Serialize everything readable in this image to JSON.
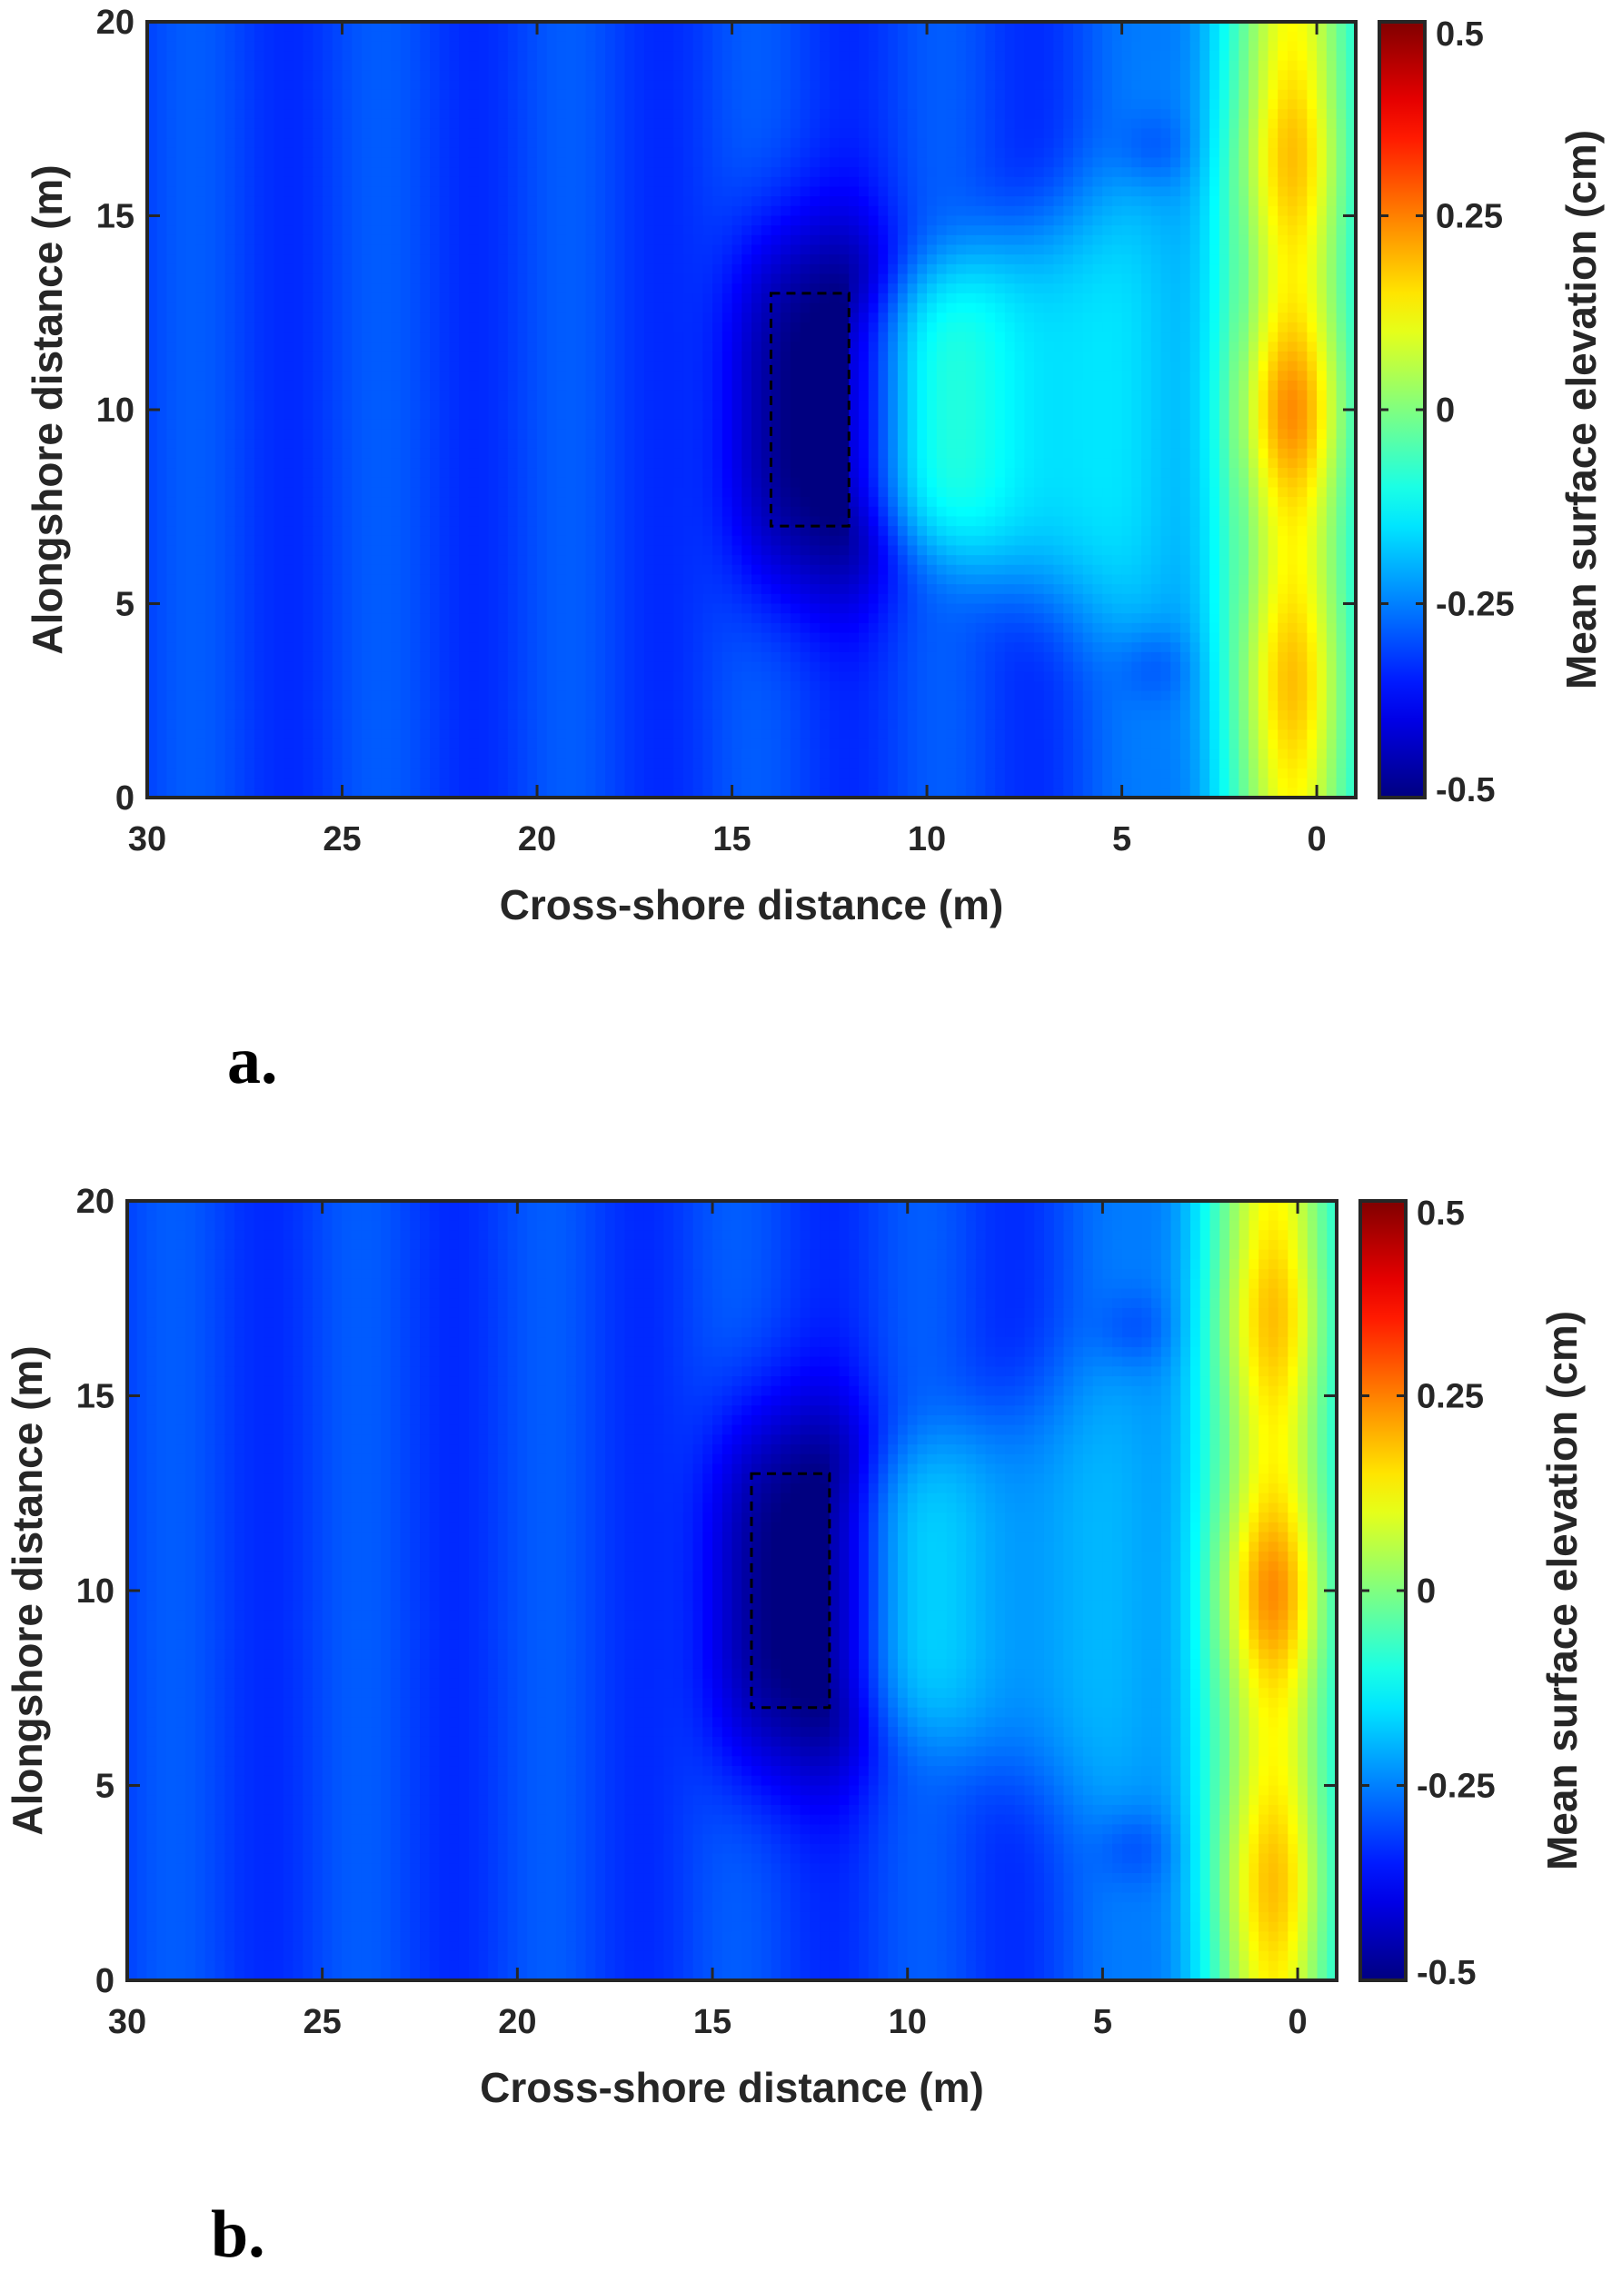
{
  "chart_data": [
    {
      "type": "heatmap",
      "panel_label": "a.",
      "xlabel": "Cross-shore distance (m)",
      "ylabel": "Alongshore distance (m)",
      "xlim": [
        30,
        -1
      ],
      "x_reversed": true,
      "ylim": [
        0,
        20
      ],
      "xticks": [
        30,
        25,
        20,
        15,
        10,
        5,
        0
      ],
      "yticks": [
        0,
        5,
        10,
        15,
        20
      ],
      "colorbar": {
        "label": "Mean surface elevation (cm)",
        "limits": [
          -0.5,
          0.5
        ],
        "ticks": [
          0.5,
          0.25,
          0,
          -0.25,
          -0.5
        ],
        "tick_labels": [
          "0.5",
          "0.25",
          "0",
          "-0.25",
          "-0.5"
        ],
        "colormap": "jet"
      },
      "structure_box": {
        "x": [
          14,
          12
        ],
        "y": [
          7,
          13
        ]
      },
      "field_features": {
        "shadow_zone_value": -0.22,
        "shoreline_peak_value": 0.38,
        "peak_alongshore_locations": [
          10,
          16.5,
          3
        ]
      }
    },
    {
      "type": "heatmap",
      "panel_label": "b.",
      "xlabel": "Cross-shore distance (m)",
      "ylabel": "Alongshore distance (m)",
      "xlim": [
        30,
        -1
      ],
      "x_reversed": true,
      "ylim": [
        0,
        20
      ],
      "xticks": [
        30,
        25,
        20,
        15,
        10,
        5,
        0
      ],
      "yticks": [
        0,
        5,
        10,
        15,
        20
      ],
      "colorbar": {
        "label": "Mean surface elevation (cm)",
        "limits": [
          -0.5,
          0.5
        ],
        "ticks": [
          0.5,
          0.25,
          0,
          -0.25,
          -0.5
        ],
        "tick_labels": [
          "0.5",
          "0.25",
          "0",
          "-0.25",
          "-0.5"
        ],
        "colormap": "jet"
      },
      "structure_box": {
        "x": [
          14,
          12
        ],
        "y": [
          7,
          13
        ]
      },
      "field_features": {
        "shadow_zone_value": -0.3,
        "shoreline_peak_value": 0.4,
        "peak_alongshore_locations": [
          10,
          17,
          2.5
        ]
      }
    }
  ]
}
